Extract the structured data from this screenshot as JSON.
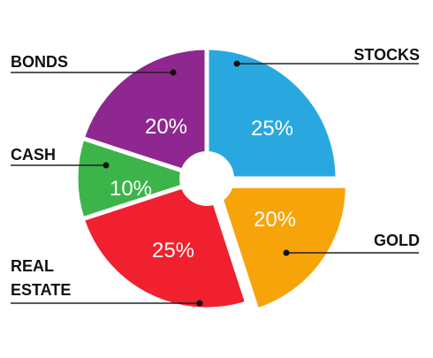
{
  "chart_data": {
    "type": "pie",
    "donut": true,
    "slices": [
      {
        "label": "STOCKS",
        "value": 25,
        "value_label": "25%",
        "color": "#29a8e0",
        "exploded": false
      },
      {
        "label": "GOLD",
        "value": 20,
        "value_label": "20%",
        "color": "#f7a30a",
        "exploded": true
      },
      {
        "label": "REAL ESTATE",
        "label_lines": [
          "REAL",
          "ESTATE"
        ],
        "value": 25,
        "value_label": "25%",
        "color": "#f0202e",
        "exploded": false
      },
      {
        "label": "CASH",
        "value": 10,
        "value_label": "10%",
        "color": "#3cb44a",
        "exploded": false
      },
      {
        "label": "BONDS",
        "value": 20,
        "value_label": "20%",
        "color": "#8e278f",
        "exploded": false
      }
    ]
  }
}
